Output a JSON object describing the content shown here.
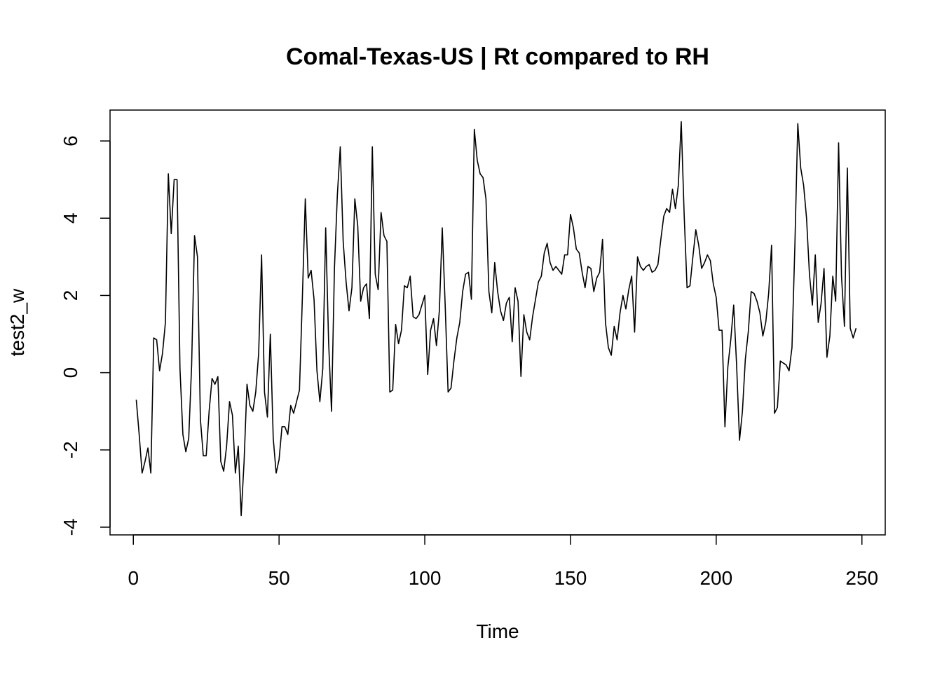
{
  "chart_data": {
    "type": "line",
    "title": "Comal-Texas-US | Rt compared to RH",
    "xlabel": "Time",
    "ylabel": "test2_w",
    "xlim": [
      -8,
      258
    ],
    "ylim": [
      -4.2,
      6.8
    ],
    "xticks": [
      0,
      50,
      100,
      150,
      200,
      250
    ],
    "yticks": [
      -4,
      -2,
      0,
      2,
      4,
      6
    ],
    "grid": false,
    "legend": "none",
    "line_color": "#000000",
    "series": [
      {
        "x": [
          1,
          2,
          3,
          4,
          5,
          6,
          7,
          8,
          9,
          10,
          11,
          12,
          13,
          14,
          15,
          16,
          17,
          18,
          19,
          20,
          21,
          22,
          23,
          24,
          25,
          26,
          27,
          28,
          29,
          30,
          31,
          32,
          33,
          34,
          35,
          36,
          37,
          38,
          39,
          40,
          41,
          42,
          43,
          44,
          45,
          46,
          47,
          48,
          49,
          50,
          51,
          52,
          53,
          54,
          55,
          56,
          57,
          58,
          59,
          60,
          61,
          62,
          63,
          64,
          65,
          66,
          67,
          68,
          69,
          70,
          71,
          72,
          73,
          74,
          75,
          76,
          77,
          78,
          79,
          80,
          81,
          82,
          83,
          84,
          85,
          86,
          87,
          88,
          89,
          90,
          91,
          92,
          93,
          94,
          95,
          96,
          97,
          98,
          99,
          100,
          101,
          102,
          103,
          104,
          105,
          106,
          107,
          108,
          109,
          110,
          111,
          112,
          113,
          114,
          115,
          116,
          117,
          118,
          119,
          120,
          121,
          122,
          123,
          124,
          125,
          126,
          127,
          128,
          129,
          130,
          131,
          132,
          133,
          134,
          135,
          136,
          137,
          138,
          139,
          140,
          141,
          142,
          143,
          144,
          145,
          146,
          147,
          148,
          149,
          150,
          151,
          152,
          153,
          154,
          155,
          156,
          157,
          158,
          159,
          160,
          161,
          162,
          163,
          164,
          165,
          166,
          167,
          168,
          169,
          170,
          171,
          172,
          173,
          174,
          175,
          176,
          177,
          178,
          179,
          180,
          181,
          182,
          183,
          184,
          185,
          186,
          187,
          188,
          189,
          190,
          191,
          192,
          193,
          194,
          195,
          196,
          197,
          198,
          199,
          200,
          201,
          202,
          203,
          204,
          205,
          206,
          207,
          208,
          209,
          210,
          211,
          212,
          213,
          214,
          215,
          216,
          217,
          218,
          219,
          220,
          221,
          222,
          223,
          224,
          225,
          226,
          227,
          228,
          229,
          230,
          231,
          232,
          233,
          234,
          235,
          236,
          237,
          238,
          239,
          240,
          241,
          242,
          243,
          244,
          245,
          246,
          247,
          248
        ],
        "values": [
          -0.7,
          -1.6,
          -2.6,
          -2.3,
          -1.95,
          -2.6,
          0.9,
          0.85,
          0.05,
          0.5,
          1.3,
          5.15,
          3.6,
          5.0,
          5.0,
          0.1,
          -1.6,
          -2.05,
          -1.7,
          0.2,
          3.55,
          3.0,
          -1.2,
          -2.15,
          -2.15,
          -1.0,
          -0.15,
          -0.3,
          -0.1,
          -2.3,
          -2.55,
          -1.9,
          -0.75,
          -1.1,
          -2.6,
          -1.9,
          -3.7,
          -2.3,
          -0.3,
          -0.85,
          -1.0,
          -0.5,
          0.5,
          3.05,
          -0.5,
          -1.15,
          1.0,
          -1.7,
          -2.6,
          -2.25,
          -1.4,
          -1.4,
          -1.6,
          -0.85,
          -1.05,
          -0.75,
          -0.45,
          1.95,
          4.5,
          2.45,
          2.65,
          1.9,
          0.05,
          -0.75,
          0.1,
          3.75,
          0.8,
          -1.0,
          2.7,
          4.6,
          5.85,
          3.4,
          2.35,
          1.6,
          2.2,
          4.5,
          3.8,
          1.85,
          2.2,
          2.3,
          1.4,
          5.85,
          2.55,
          2.15,
          4.15,
          3.55,
          3.4,
          -0.5,
          -0.45,
          1.25,
          0.75,
          1.1,
          2.25,
          2.2,
          2.5,
          1.45,
          1.4,
          1.5,
          1.75,
          2.0,
          -0.05,
          1.1,
          1.4,
          0.7,
          1.6,
          3.75,
          1.75,
          -0.5,
          -0.4,
          0.3,
          0.9,
          1.3,
          2.1,
          2.55,
          2.6,
          1.9,
          6.3,
          5.5,
          5.15,
          5.05,
          4.5,
          2.1,
          1.55,
          2.85,
          2.1,
          1.6,
          1.35,
          1.8,
          1.95,
          0.8,
          2.2,
          1.85,
          -0.1,
          1.5,
          1.05,
          0.85,
          1.45,
          1.9,
          2.35,
          2.5,
          3.1,
          3.35,
          2.85,
          2.65,
          2.75,
          2.65,
          2.55,
          3.05,
          3.05,
          4.1,
          3.75,
          3.2,
          3.1,
          2.6,
          2.2,
          2.75,
          2.7,
          2.1,
          2.45,
          2.6,
          3.45,
          1.3,
          0.65,
          0.45,
          1.2,
          0.85,
          1.55,
          2.0,
          1.65,
          2.15,
          2.5,
          1.05,
          3.0,
          2.75,
          2.65,
          2.75,
          2.8,
          2.6,
          2.65,
          2.8,
          3.45,
          4.05,
          4.25,
          4.15,
          4.75,
          4.25,
          4.85,
          6.5,
          4.1,
          2.2,
          2.25,
          3.0,
          3.7,
          3.3,
          2.7,
          2.85,
          3.05,
          2.9,
          2.3,
          1.95,
          1.1,
          1.1,
          -1.4,
          0.15,
          0.85,
          1.75,
          0.2,
          -1.75,
          -1.0,
          0.35,
          1.05,
          2.1,
          2.05,
          1.85,
          1.55,
          0.95,
          1.3,
          2.05,
          3.3,
          -1.05,
          -0.9,
          0.3,
          0.25,
          0.2,
          0.05,
          0.65,
          3.3,
          6.45,
          5.3,
          4.85,
          4.0,
          2.55,
          1.75,
          3.05,
          1.3,
          1.8,
          2.7,
          0.4,
          0.95,
          2.5,
          1.85,
          5.95,
          2.5,
          1.2,
          5.3,
          1.15,
          0.9,
          1.15
        ]
      }
    ]
  }
}
